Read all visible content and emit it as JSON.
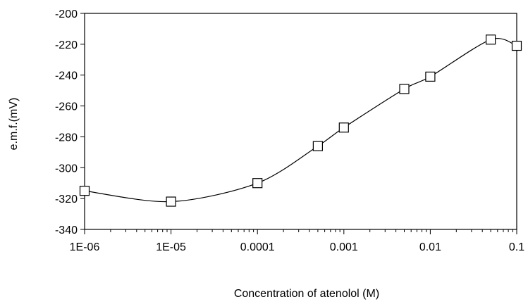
{
  "chart_data": {
    "type": "line",
    "title": "",
    "xlabel": "Concentration of atenolol (M)",
    "ylabel": "e.m.f.(mV)",
    "x_scale": "log",
    "xlim": [
      1e-06,
      0.1
    ],
    "ylim": [
      -340,
      -200
    ],
    "x_ticks": [
      {
        "value": 1e-06,
        "label": "1E-06"
      },
      {
        "value": 1e-05,
        "label": "1E-05"
      },
      {
        "value": 0.0001,
        "label": "0.0001"
      },
      {
        "value": 0.001,
        "label": "0.001"
      },
      {
        "value": 0.01,
        "label": "0.01"
      },
      {
        "value": 0.1,
        "label": "0.1"
      }
    ],
    "y_ticks": [
      {
        "value": -200,
        "label": "-200"
      },
      {
        "value": -220,
        "label": "-220"
      },
      {
        "value": -240,
        "label": "-240"
      },
      {
        "value": -260,
        "label": "-260"
      },
      {
        "value": -280,
        "label": "-280"
      },
      {
        "value": -300,
        "label": "-300"
      },
      {
        "value": -320,
        "label": "-320"
      },
      {
        "value": -340,
        "label": "-340"
      }
    ],
    "grid": false,
    "legend": "none",
    "marker": "open-square",
    "line_style": "smoothed",
    "colors": {
      "line": "#000000",
      "marker_fill": "#ffffff",
      "marker_stroke": "#000000",
      "axis": "#000000"
    },
    "series": [
      {
        "x": [
          1e-06,
          1e-05,
          0.0001,
          0.0005,
          0.001,
          0.005,
          0.01,
          0.05,
          0.1
        ],
        "y": [
          -315,
          -322,
          -310,
          -286,
          -274,
          -249,
          -241,
          -217,
          -221
        ]
      }
    ]
  }
}
